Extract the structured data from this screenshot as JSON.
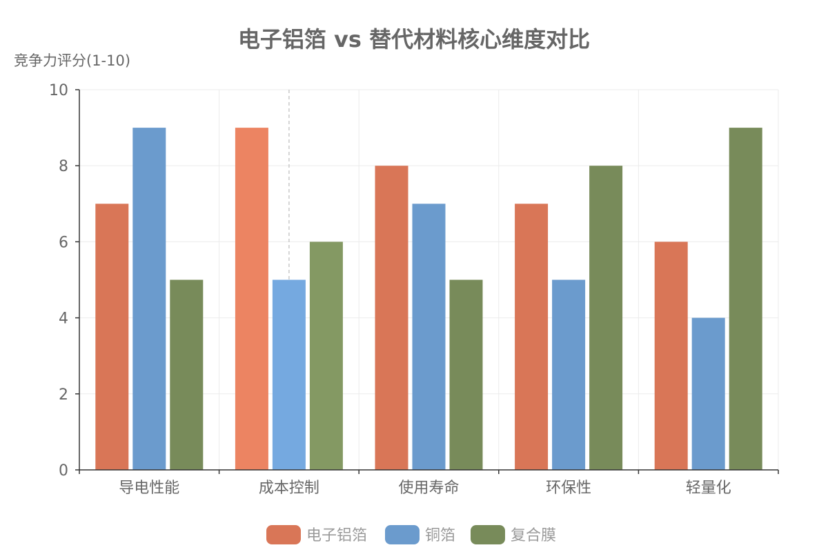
{
  "chart_data": {
    "type": "bar",
    "title": "电子铝箔 vs 替代材料核心维度对比",
    "ylabel": "竞争力评分(1-10)",
    "xlabel": "",
    "categories": [
      "导电性能",
      "成本控制",
      "使用寿命",
      "环保性",
      "轻量化"
    ],
    "ylim": [
      0,
      10
    ],
    "yticks": [
      0,
      2,
      4,
      6,
      8,
      10
    ],
    "grid": true,
    "legend_position": "bottom",
    "series": [
      {
        "name": "电子铝箔",
        "values": [
          7,
          9,
          8,
          7,
          6
        ],
        "color": "#D97657"
      },
      {
        "name": "铜箔",
        "values": [
          9,
          5,
          7,
          5,
          4
        ],
        "color": "#6B9BCD"
      },
      {
        "name": "复合膜",
        "values": [
          5,
          6,
          5,
          8,
          9
        ],
        "color": "#788B5A"
      }
    ],
    "highlighted_category": "成本控制",
    "highlight_colors": [
      "#EC8462",
      "#75A9E0",
      "#849963"
    ]
  }
}
